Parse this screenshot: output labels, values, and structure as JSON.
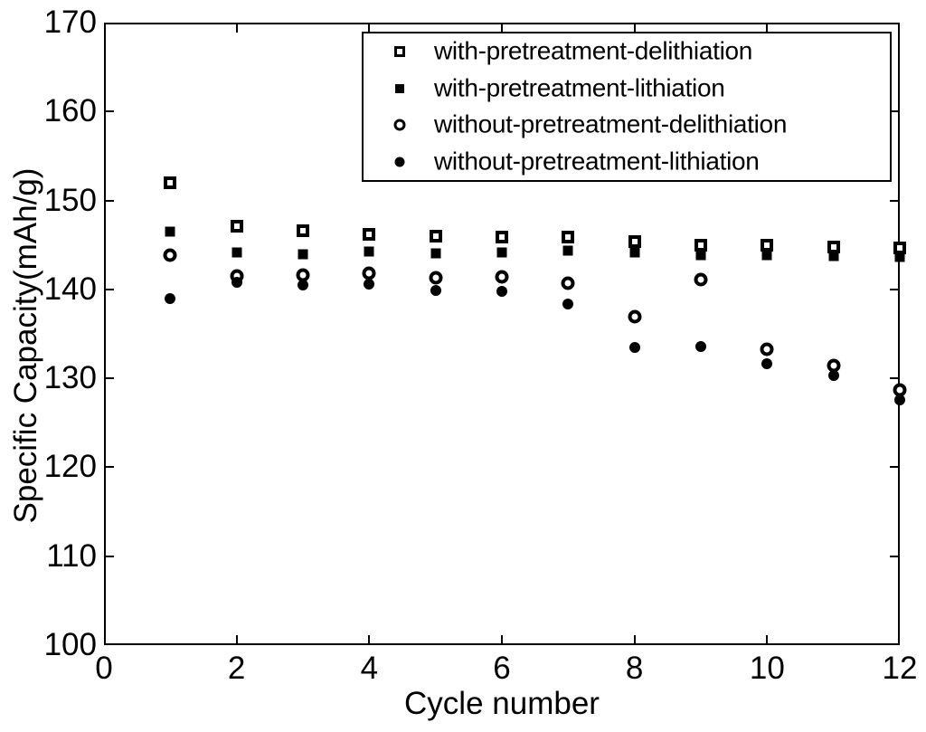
{
  "figure": {
    "background_color": "#ffffff",
    "axis_color": "#000000",
    "text_color": "#000000",
    "marker_color": "#000000"
  },
  "chart_data": {
    "type": "scatter",
    "title": "",
    "xlabel": "Cycle number",
    "ylabel": "Specific Capacity(mAh/g)",
    "xlim": [
      0,
      12
    ],
    "ylim": [
      100,
      170
    ],
    "xticks": [
      0,
      2,
      4,
      6,
      8,
      10,
      12
    ],
    "yticks": [
      100,
      110,
      120,
      130,
      140,
      150,
      160,
      170
    ],
    "grid": false,
    "legend_position": "top-right",
    "x": [
      1,
      2,
      3,
      4,
      5,
      6,
      7,
      8,
      9,
      10,
      11,
      12
    ],
    "series": [
      {
        "name": "with-pretreatment-delithiation",
        "marker": "open-square",
        "color": "#000000",
        "values": [
          152.0,
          147.1,
          146.6,
          146.2,
          146.0,
          145.9,
          145.9,
          145.4,
          145.0,
          145.0,
          144.8,
          144.7
        ]
      },
      {
        "name": "with-pretreatment-lithiation",
        "marker": "filled-square",
        "color": "#000000",
        "values": [
          146.5,
          144.2,
          144.0,
          144.3,
          144.1,
          144.2,
          144.4,
          144.2,
          143.9,
          143.9,
          143.7,
          143.6
        ]
      },
      {
        "name": "without-pretreatment-delithiation",
        "marker": "open-circle",
        "color": "#000000",
        "values": [
          143.9,
          141.5,
          141.6,
          141.8,
          141.3,
          141.4,
          140.7,
          136.9,
          141.1,
          133.3,
          131.4,
          128.7
        ]
      },
      {
        "name": "without-pretreatment-lithiation",
        "marker": "filled-circle",
        "color": "#000000",
        "values": [
          139.0,
          140.8,
          140.5,
          140.6,
          139.9,
          139.8,
          138.4,
          133.5,
          133.6,
          131.6,
          130.3,
          127.6
        ]
      }
    ]
  }
}
